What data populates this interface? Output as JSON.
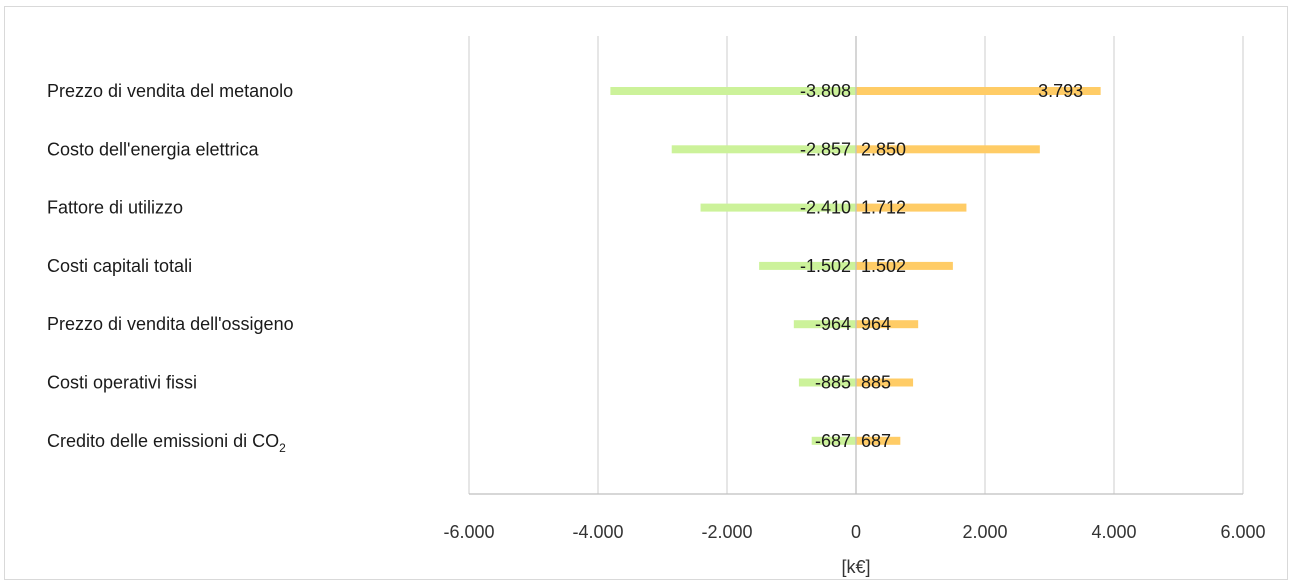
{
  "chart_data": {
    "type": "bar",
    "orientation": "horizontal",
    "categories": [
      "Prezzo di vendita del metanolo",
      "Costo dell'energia elettrica",
      "Fattore di utilizzo",
      "Costi capitali totali",
      "Prezzo di vendita dell'ossigeno",
      "Costi operativi fissi",
      "Credito delle emissioni di CO"
    ],
    "category_subscripts": [
      "",
      "",
      "",
      "",
      "",
      "",
      "2"
    ],
    "series": [
      {
        "values": [
          -3808,
          -2857,
          -2410,
          -1502,
          -964,
          -885,
          -687
        ],
        "color": "#ccf29a"
      },
      {
        "values": [
          3793,
          2850,
          1712,
          1502,
          964,
          885,
          687
        ],
        "color": "#ffcc66"
      }
    ],
    "data_labels": [
      [
        "-3.808",
        "-2.857",
        "-2.410",
        "-1.502",
        "-964",
        "-885",
        "-687"
      ],
      [
        "3.793",
        "2.850",
        "1.712",
        "1.502",
        "964",
        "885",
        "687"
      ]
    ],
    "xlim": [
      -6000,
      6000
    ],
    "xticks": [
      -6000,
      -4000,
      -2000,
      0,
      2000,
      4000,
      6000
    ],
    "xtick_labels": [
      "-6.000",
      "-4.000",
      "-2.000",
      "0",
      "2.000",
      "4.000",
      "6.000"
    ],
    "xlabel": "[k€]",
    "grid": true,
    "legend": "none"
  }
}
